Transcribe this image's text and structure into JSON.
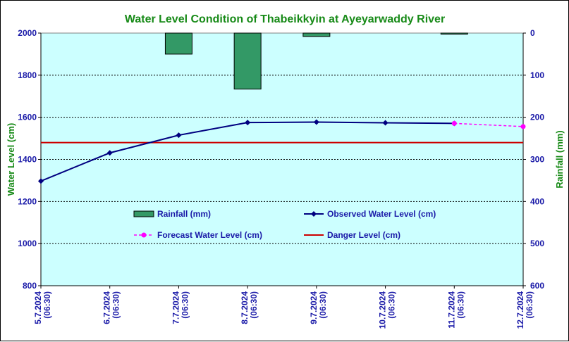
{
  "chart_data": {
    "type": "line",
    "title": "Water Level Condition of Thabeikkyin at Ayeyarwaddy River",
    "ylabel": "Water Level (cm)",
    "y2label": "Rainfall (mm)",
    "ylim": [
      800,
      2000
    ],
    "y2lim": [
      0,
      600
    ],
    "y2_inverted": true,
    "yticks": [
      "2000",
      "1800",
      "1600",
      "1400",
      "1200",
      "1000",
      "800"
    ],
    "y2ticks": [
      "0",
      "100",
      "200",
      "300",
      "400",
      "500",
      "600"
    ],
    "categories": [
      [
        "5.7.2024",
        "(06:30)"
      ],
      [
        "6.7.2024",
        "(06:30)"
      ],
      [
        "7.7.2024",
        "(06:30)"
      ],
      [
        "8.7.2024",
        "(06:30)"
      ],
      [
        "9.7.2024",
        "(06:30)"
      ],
      [
        "10.7.2024",
        "(06:30)"
      ],
      [
        "11.7.2024",
        "(06:30)"
      ],
      [
        "12.7.2024",
        "(06:30)"
      ]
    ],
    "grid": true,
    "legend_position": "inside-center",
    "series": [
      {
        "name": "Rainfall (mm)",
        "type": "bar",
        "axis": "right",
        "color": "#339966",
        "values": [
          0,
          0,
          50,
          133,
          8,
          0,
          1,
          null
        ]
      },
      {
        "name": "Observed Water Level (cm)",
        "type": "line",
        "axis": "left",
        "color": "#000080",
        "marker": "diamond",
        "values": [
          1297,
          1431,
          1515,
          1575,
          1577,
          1574,
          1571,
          null
        ]
      },
      {
        "name": "Forecast Water Level (cm)",
        "type": "line",
        "axis": "left",
        "color": "#ff00ff",
        "dashed": true,
        "marker": "circle",
        "values": [
          null,
          null,
          null,
          null,
          null,
          null,
          1571,
          1556
        ]
      },
      {
        "name": "Danger Level (cm)",
        "type": "hline",
        "axis": "left",
        "color": "#cc0000",
        "value": 1480
      }
    ],
    "colors": {
      "plot_background": "#ccffff",
      "title": "#178a17",
      "axis_title": "#178a17",
      "tick_labels": "#1a1aa8"
    }
  }
}
